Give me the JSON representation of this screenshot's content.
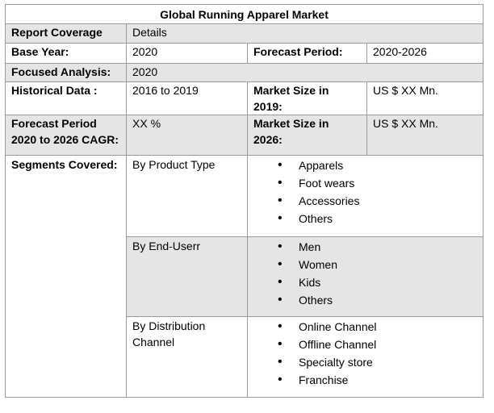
{
  "title": "Global Running Apparel Market",
  "rows": {
    "coverage": {
      "label": "Report Coverage",
      "value": "Details"
    },
    "base_year": {
      "label": "Base Year:",
      "value": "2020",
      "label2": "Forecast Period:",
      "value2": "2020-2026"
    },
    "focused": {
      "label": "Focused Analysis:",
      "value": "2020"
    },
    "historical": {
      "label": "Historical Data :",
      "value": "2016 to 2019",
      "label2_line1": "Market Size in",
      "label2_line2": "2019:",
      "value2": "US $ XX Mn."
    },
    "forecast": {
      "label_line1": "Forecast Period",
      "label_line2": "2020 to 2026 CAGR:",
      "value": "XX %",
      "label2_line1": "Market Size in",
      "label2_line2": "2026:",
      "value2": "US $ XX Mn."
    }
  },
  "segments": {
    "label": "Segments Covered:",
    "groups": [
      {
        "name": "By Product Type",
        "items": [
          "Apparels",
          "Foot wears",
          "Accessories",
          "Others"
        ]
      },
      {
        "name": "By End-Userr",
        "items": [
          "Men",
          "Women",
          "Kids",
          "Others"
        ]
      },
      {
        "name_line1": "By Distribution",
        "name_line2": "Channel",
        "items": [
          "Online Channel",
          "Offline Channel",
          "Specialty store",
          "Franchise"
        ]
      }
    ]
  }
}
